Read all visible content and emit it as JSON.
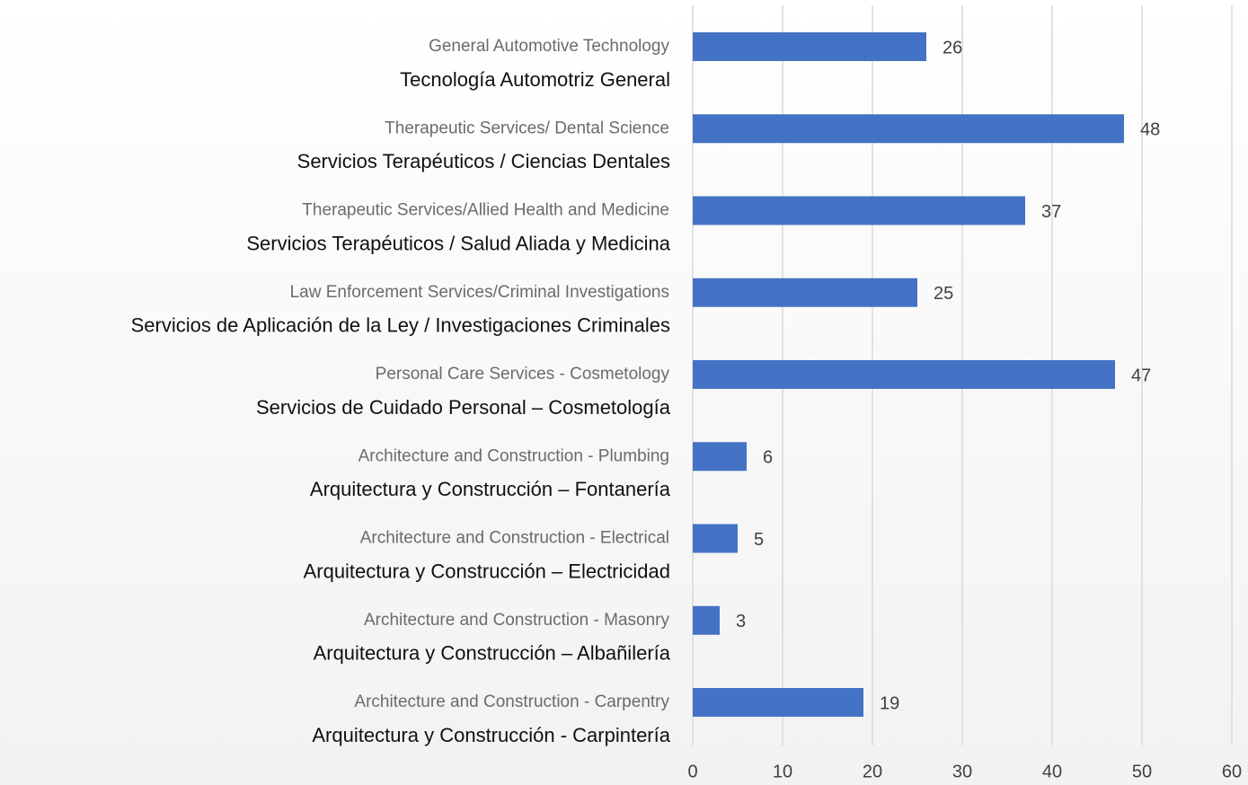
{
  "chart_data": {
    "type": "bar",
    "orientation": "horizontal",
    "categories": [
      "General Automotive Technology",
      "Therapeutic Services/ Dental Science",
      "Therapeutic Services/Allied Health and Medicine",
      "Law Enforcement Services/Criminal Investigations",
      "Personal Care Services - Cosmetology",
      "Architecture and Construction - Plumbing",
      "Architecture and Construction - Electrical",
      "Architecture and Construction - Masonry",
      "Architecture and Construction - Carpentry"
    ],
    "categories_es": [
      "Tecnología Automotriz General",
      "Servicios Terapéuticos / Ciencias Dentales",
      "Servicios Terapéuticos / Salud Aliada y Medicina",
      "Servicios de Aplicación de la Ley / Investigaciones Criminales",
      "Servicios de Cuidado Personal – Cosmetología",
      "Arquitectura y Construcción – Fontanería",
      "Arquitectura y Construcción – Electricidad",
      "Arquitectura y Construcción – Albañilería",
      "Arquitectura y Construcción - Carpintería"
    ],
    "values": [
      26,
      48,
      37,
      25,
      47,
      6,
      5,
      3,
      19
    ],
    "color": "#4472c4",
    "xlim": [
      0,
      60
    ],
    "xticks": [
      0,
      10,
      20,
      30,
      40,
      50,
      60
    ],
    "grid": true
  }
}
